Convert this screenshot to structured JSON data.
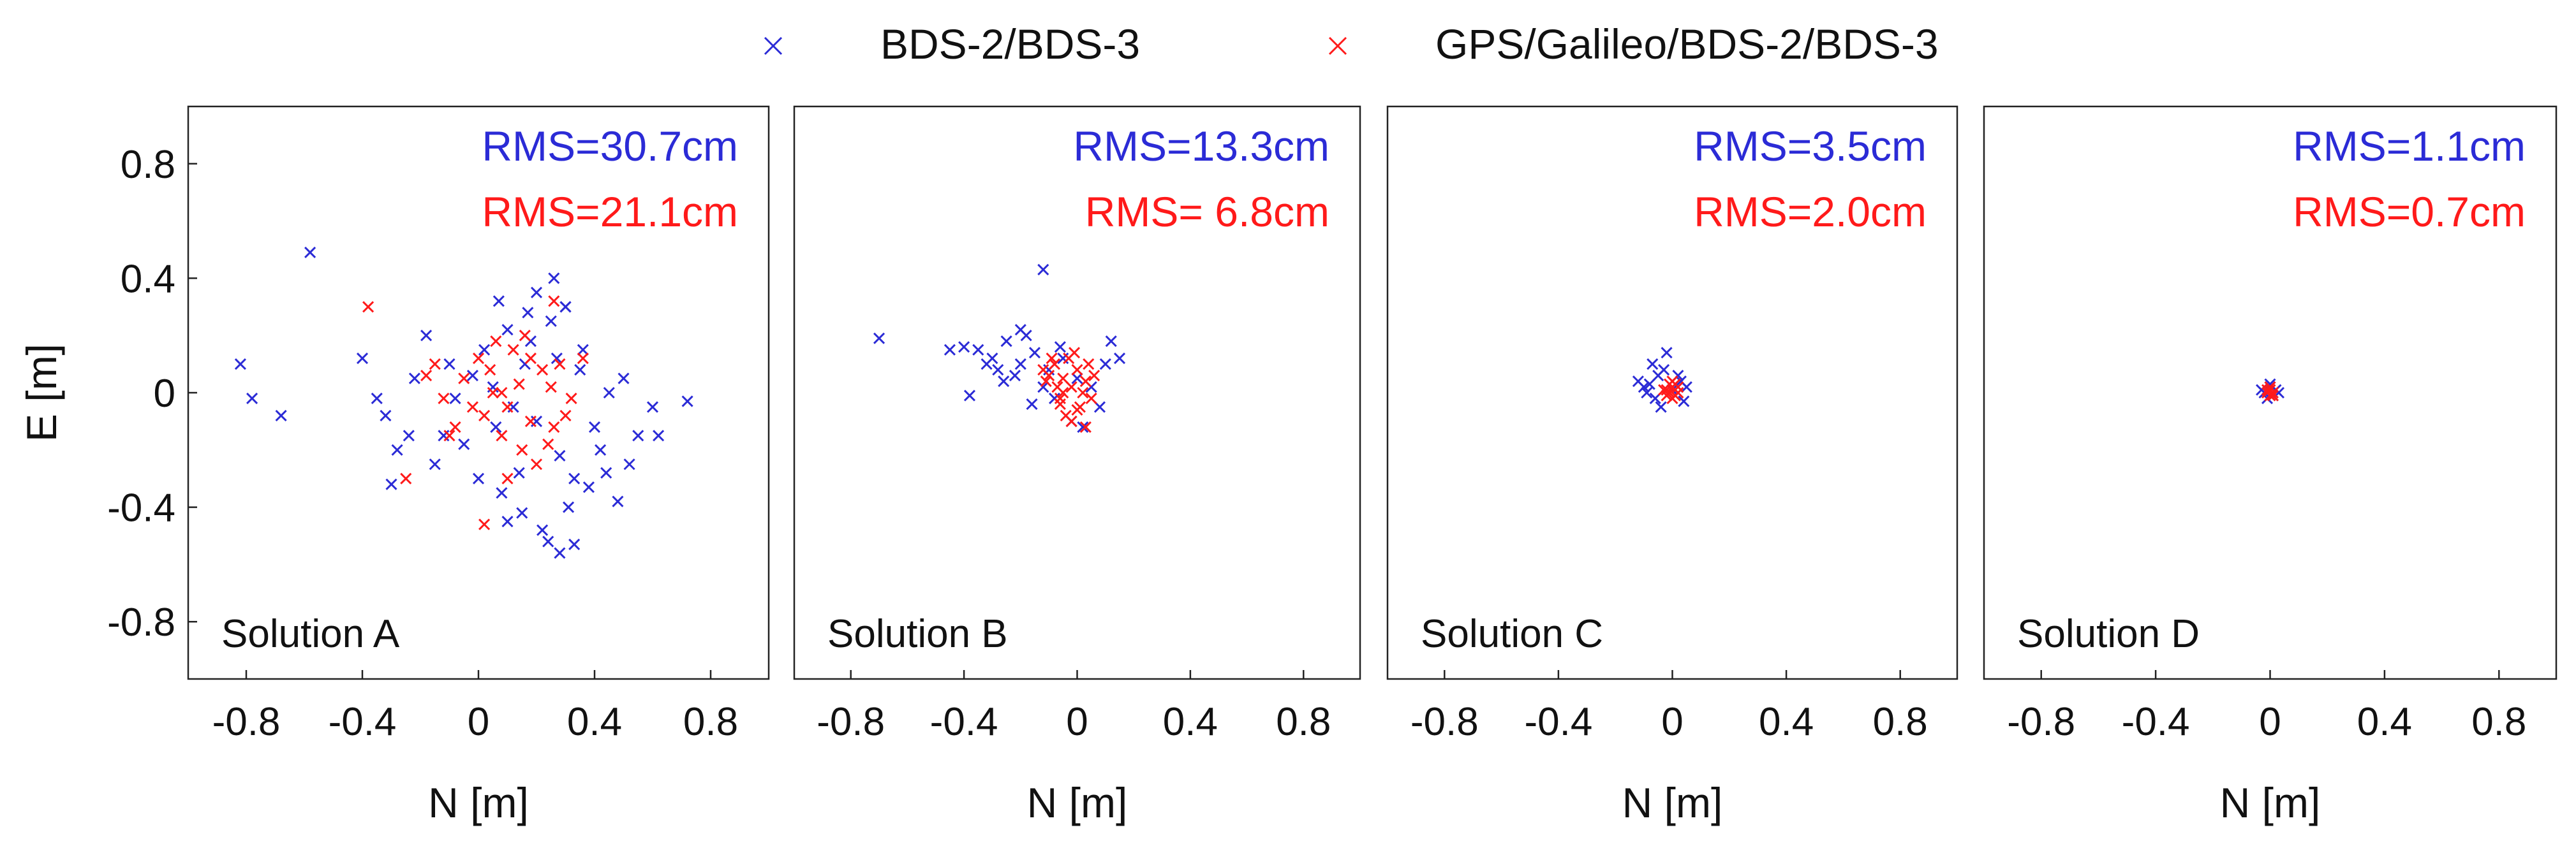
{
  "legend": {
    "placement": "top-center",
    "entries": [
      {
        "label": "BDS-2/BDS-3",
        "color": "#2b2bd6",
        "marker": "x"
      },
      {
        "label": "GPS/Galileo/BDS-2/BDS-3",
        "color": "#ff1a1a",
        "marker": "x"
      }
    ]
  },
  "chart_data": [
    {
      "type": "scatter",
      "annotation": "Solution A",
      "xlabel": "N [m]",
      "ylabel": "E [m]",
      "xlim": [
        -1.0,
        1.0
      ],
      "ylim": [
        -1.0,
        1.0
      ],
      "xticks": [
        -0.8,
        -0.4,
        0,
        0.4,
        0.8
      ],
      "yticks": [
        -0.8,
        -0.4,
        0,
        0.4,
        0.8
      ],
      "grid": false,
      "rms": [
        {
          "series": "BDS-2/BDS-3",
          "text": "RMS=30.7cm",
          "color": "#2b2bd6"
        },
        {
          "series": "GPS/Galileo/BDS-2/BDS-3",
          "text": "RMS=21.1cm",
          "color": "#ff1a1a"
        }
      ],
      "series": [
        {
          "name": "BDS-2/BDS-3",
          "color": "#2b2bd6",
          "x": [
            0.05,
            0.12,
            -0.1,
            0.28,
            0.33,
            -0.22,
            0.18,
            0.4,
            -0.32,
            0.08,
            0.25,
            -0.05,
            0.45,
            0.52,
            -0.4,
            0.15,
            0.3,
            0.22,
            -0.15,
            0.35,
            0.1,
            0.48,
            0.6,
            -0.28,
            0.02,
            0.2,
            0.38,
            -0.08,
            0.27,
            0.14,
            -0.18,
            0.42,
            0.55,
            0.06,
            -0.35,
            0.31,
            0.24,
            0.17,
            -0.02,
            0.36,
            -0.58,
            -0.82,
            -0.78,
            -0.68,
            0.72,
            0.62,
            0.26,
            0.28,
            0.33,
            -0.3,
            0.1,
            0.2,
            0.3,
            0.0,
            -0.12,
            0.44,
            0.5,
            0.16,
            0.07,
            -0.24
          ],
          "y": [
            0.02,
            -0.05,
            0.1,
            -0.22,
            -0.3,
            0.05,
            0.18,
            -0.12,
            -0.08,
            -0.35,
            0.25,
            -0.18,
            0.0,
            -0.25,
            0.12,
            -0.42,
            0.3,
            -0.48,
            -0.25,
            0.08,
            0.22,
            -0.38,
            -0.05,
            -0.2,
            0.15,
            -0.1,
            -0.33,
            -0.02,
            0.12,
            -0.28,
            0.2,
            -0.2,
            -0.15,
            -0.12,
            -0.02,
            -0.4,
            -0.52,
            0.28,
            0.06,
            0.15,
            0.49,
            0.1,
            -0.02,
            -0.08,
            -0.03,
            -0.15,
            0.4,
            -0.56,
            -0.53,
            -0.32,
            -0.45,
            0.35,
            0.3,
            -0.3,
            -0.15,
            -0.28,
            0.05,
            0.1,
            0.32,
            -0.15
          ]
        },
        {
          "name": "GPS/Galileo/BDS-2/BDS-3",
          "color": "#ff1a1a",
          "x": [
            0.05,
            0.1,
            -0.05,
            0.18,
            0.22,
            -0.12,
            0.08,
            0.25,
            0.0,
            0.15,
            0.3,
            -0.18,
            0.12,
            0.2,
            -0.08,
            0.02,
            0.28,
            0.14,
            -0.02,
            0.06,
            0.24,
            0.32,
            -0.15,
            0.1,
            0.16,
            0.04,
            -0.1,
            0.26,
            0.18,
            0.08,
            -0.38,
            0.02,
            0.36,
            -0.25,
            0.26
          ],
          "y": [
            0.0,
            -0.05,
            0.05,
            -0.1,
            0.08,
            -0.02,
            -0.15,
            0.02,
            0.12,
            -0.2,
            -0.08,
            0.06,
            0.15,
            -0.25,
            -0.12,
            -0.08,
            0.1,
            0.03,
            -0.05,
            0.18,
            -0.18,
            -0.02,
            0.1,
            -0.3,
            0.2,
            0.08,
            -0.15,
            -0.12,
            0.12,
            0.0,
            0.3,
            -0.46,
            0.12,
            -0.3,
            0.32
          ]
        }
      ]
    },
    {
      "type": "scatter",
      "annotation": "Solution B",
      "xlabel": "N [m]",
      "ylabel": "",
      "xlim": [
        -1.0,
        1.0
      ],
      "ylim": [
        -1.0,
        1.0
      ],
      "xticks": [
        -0.8,
        -0.4,
        0,
        0.4,
        0.8
      ],
      "yticks": [],
      "grid": false,
      "rms": [
        {
          "series": "BDS-2/BDS-3",
          "text": "RMS=13.3cm",
          "color": "#2b2bd6"
        },
        {
          "series": "GPS/Galileo/BDS-2/BDS-3",
          "text": "RMS= 6.8cm",
          "color": "#ff1a1a"
        }
      ],
      "series": [
        {
          "name": "BDS-2/BDS-3",
          "color": "#2b2bd6",
          "x": [
            -0.35,
            -0.3,
            -0.25,
            -0.2,
            -0.15,
            -0.4,
            -0.1,
            -0.05,
            0.0,
            0.05,
            0.1,
            -0.22,
            -0.18,
            -0.28,
            -0.12,
            -0.08,
            0.08,
            0.12,
            -0.32,
            -0.02,
            -0.7,
            -0.45,
            -0.12,
            -0.38,
            -0.26,
            -0.16,
            0.02,
            0.15,
            -0.06,
            -0.2
          ],
          "y": [
            0.15,
            0.12,
            0.18,
            0.1,
            0.14,
            0.16,
            0.08,
            0.12,
            0.05,
            0.02,
            0.1,
            0.06,
            0.2,
            0.08,
            0.02,
            -0.02,
            -0.05,
            0.18,
            0.1,
            -0.1,
            0.19,
            0.15,
            0.43,
            -0.01,
            0.04,
            -0.04,
            -0.12,
            0.12,
            0.16,
            0.22
          ]
        },
        {
          "name": "GPS/Galileo/BDS-2/BDS-3",
          "color": "#ff1a1a",
          "x": [
            -0.05,
            -0.02,
            0.0,
            0.02,
            -0.08,
            -0.1,
            0.03,
            -0.06,
            -0.03,
            0.01,
            -0.12,
            -0.04,
            0.04,
            -0.07,
            -0.01,
            0.05,
            -0.09,
            -0.02,
            0.0,
            -0.05,
            0.06,
            -0.11,
            0.03,
            -0.06
          ],
          "y": [
            0.05,
            0.02,
            0.08,
            0.0,
            0.1,
            0.06,
            0.04,
            -0.02,
            0.12,
            -0.05,
            0.08,
            -0.08,
            0.1,
            0.02,
            0.14,
            -0.02,
            0.12,
            -0.1,
            -0.06,
            0.0,
            0.06,
            0.04,
            -0.12,
            -0.04
          ]
        }
      ]
    },
    {
      "type": "scatter",
      "annotation": "Solution C",
      "xlabel": "N [m]",
      "ylabel": "",
      "xlim": [
        -1.0,
        1.0
      ],
      "ylim": [
        -1.0,
        1.0
      ],
      "xticks": [
        -0.8,
        -0.4,
        0,
        0.4,
        0.8
      ],
      "yticks": [],
      "grid": false,
      "rms": [
        {
          "series": "BDS-2/BDS-3",
          "text": "RMS=3.5cm",
          "color": "#2b2bd6"
        },
        {
          "series": "GPS/Galileo/BDS-2/BDS-3",
          "text": "RMS=2.0cm",
          "color": "#ff1a1a"
        }
      ],
      "series": [
        {
          "name": "BDS-2/BDS-3",
          "color": "#2b2bd6",
          "x": [
            -0.08,
            -0.05,
            -0.1,
            -0.03,
            0.0,
            0.03,
            -0.06,
            -0.12,
            0.04,
            -0.02,
            -0.07,
            0.02,
            -0.04,
            0.05,
            -0.09
          ],
          "y": [
            0.03,
            0.06,
            0.02,
            0.08,
            0.01,
            0.04,
            -0.02,
            0.04,
            -0.03,
            0.14,
            0.1,
            0.06,
            -0.05,
            0.02,
            0.0
          ]
        },
        {
          "name": "GPS/Galileo/BDS-2/BDS-3",
          "color": "#ff1a1a",
          "x": [
            -0.02,
            0.0,
            0.01,
            -0.01,
            0.02,
            -0.03,
            0.0,
            0.01,
            -0.02,
            0.02,
            -0.01,
            0.0
          ],
          "y": [
            0.01,
            0.02,
            -0.01,
            0.03,
            0.0,
            0.01,
            -0.02,
            0.03,
            -0.01,
            0.02,
            0.0,
            0.04
          ]
        }
      ]
    },
    {
      "type": "scatter",
      "annotation": "Solution D",
      "xlabel": "N [m]",
      "ylabel": "",
      "xlim": [
        -1.0,
        1.0
      ],
      "ylim": [
        -1.0,
        1.0
      ],
      "xticks": [
        -0.8,
        -0.4,
        0,
        0.4,
        0.8
      ],
      "yticks": [],
      "grid": false,
      "rms": [
        {
          "series": "BDS-2/BDS-3",
          "text": "RMS=1.1cm",
          "color": "#2b2bd6"
        },
        {
          "series": "GPS/Galileo/BDS-2/BDS-3",
          "text": "RMS=0.7cm",
          "color": "#ff1a1a"
        }
      ],
      "series": [
        {
          "name": "BDS-2/BDS-3",
          "color": "#2b2bd6",
          "x": [
            -0.02,
            0.0,
            0.02,
            -0.01,
            0.01,
            -0.03,
            0.03,
            0.0
          ],
          "y": [
            0.0,
            0.02,
            0.01,
            -0.02,
            -0.01,
            0.01,
            0.0,
            0.03
          ]
        },
        {
          "name": "GPS/Galileo/BDS-2/BDS-3",
          "color": "#ff1a1a",
          "x": [
            -0.01,
            0.0,
            0.01,
            -0.01,
            0.01,
            0.0,
            0.0
          ],
          "y": [
            0.0,
            0.01,
            0.0,
            0.01,
            -0.01,
            -0.01,
            0.02
          ]
        }
      ]
    }
  ]
}
